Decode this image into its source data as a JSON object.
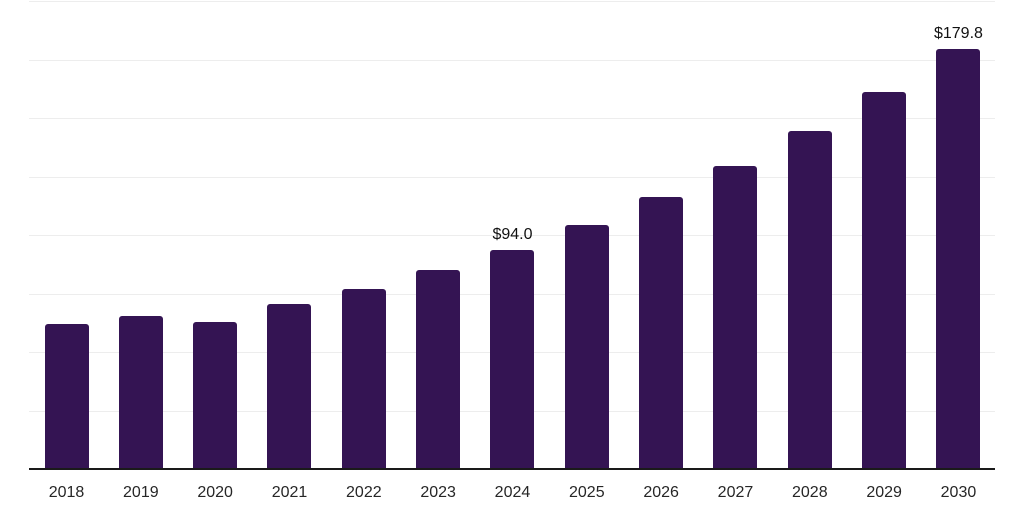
{
  "chart_data": {
    "type": "bar",
    "categories": [
      "2018",
      "2019",
      "2020",
      "2021",
      "2022",
      "2023",
      "2024",
      "2025",
      "2026",
      "2027",
      "2028",
      "2029",
      "2030"
    ],
    "values": [
      62.4,
      65.8,
      63.2,
      70.9,
      77.3,
      85.5,
      94.0,
      104.7,
      116.7,
      130.0,
      144.9,
      161.4,
      179.8
    ],
    "labeled_points": [
      {
        "category": "2024",
        "label": "$94.0"
      },
      {
        "category": "2030",
        "label": "$179.8"
      }
    ],
    "title": "",
    "xlabel": "",
    "ylabel": "",
    "ylim": [
      0,
      200
    ],
    "gridline_interval": 25,
    "grid": true,
    "legend": false,
    "colors": {
      "bar": "#341453",
      "gridline": "#ededed",
      "axis_line": "#1a1a1a",
      "tick_label": "#262626",
      "value_label": "#111111",
      "background": "#ffffff"
    }
  }
}
